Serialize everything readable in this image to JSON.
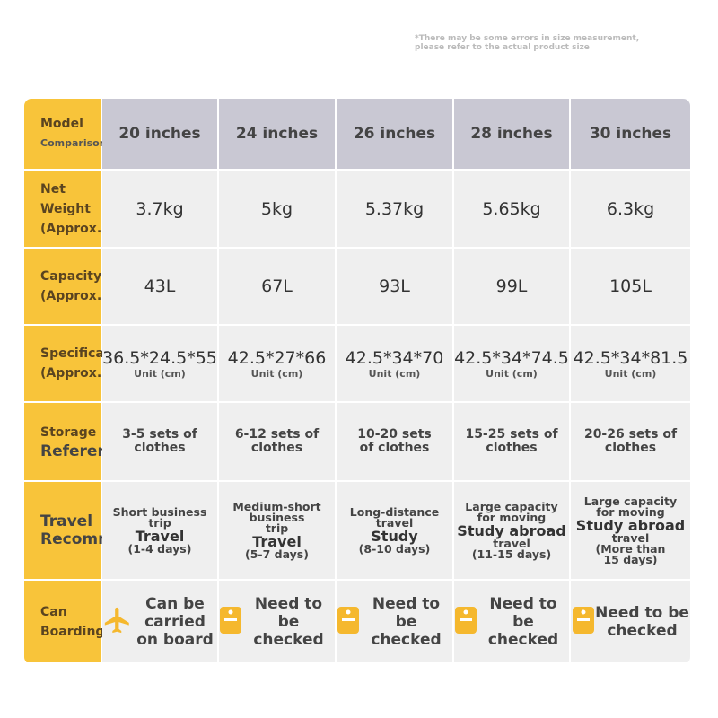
{
  "note": [
    "*There may be some errors in size measurement,",
    "please refer to the actual product size"
  ],
  "table": {
    "header": {
      "label": [
        "Model",
        "Comparison"
      ],
      "columns": [
        "20 inches",
        "24 inches",
        "26 inches",
        "28 inches",
        "30 inches"
      ]
    },
    "rows": [
      {
        "label": [
          "Net Weight",
          "(Approx.)"
        ],
        "cells": [
          [
            "3.7kg"
          ],
          [
            "5kg"
          ],
          [
            "5.37kg"
          ],
          [
            "5.65kg"
          ],
          [
            "6.3kg"
          ]
        ]
      },
      {
        "label": [
          "Capacity",
          "(Approx.)"
        ],
        "cells": [
          [
            "43L"
          ],
          [
            "67L"
          ],
          [
            "93L"
          ],
          [
            "99L"
          ],
          [
            "105L"
          ]
        ]
      },
      {
        "label": [
          "Specifications",
          "(Approx.)"
        ],
        "cells": [
          [
            "36.5*24.5*55",
            "Unit (cm)"
          ],
          [
            "42.5*27*66",
            "Unit (cm)"
          ],
          [
            "42.5*34*70",
            "Unit (cm)"
          ],
          [
            "42.5*34*74.5",
            "Unit (cm)"
          ],
          [
            "42.5*34*81.5",
            "Unit (cm)"
          ]
        ]
      },
      {
        "label": [
          "Storage",
          "Reference"
        ],
        "cells": [
          [
            "3-5 sets of",
            "clothes"
          ],
          [
            "6-12 sets of",
            "clothes"
          ],
          [
            "10-20 sets",
            "of clothes"
          ],
          [
            "15-25 sets of clothes"
          ],
          [
            "20-26 sets of clothes"
          ]
        ]
      },
      {
        "label": [
          "Travel",
          "Recommendation"
        ],
        "cells": [
          [
            "Short business",
            "trip",
            "Travel",
            "(1-4 days)"
          ],
          [
            "Medium-short business",
            "trip",
            "Travel",
            "(5-7 days)"
          ],
          [
            "Long-distance",
            "travel",
            "Study",
            "(8-10 days)"
          ],
          [
            "Large capacity",
            "for moving",
            "Study abroad",
            "travel",
            "(11-15 days)"
          ],
          [
            "Large capacity",
            "for moving",
            "Study abroad",
            "travel",
            "(More than",
            "15 days)"
          ]
        ]
      },
      {
        "label": [
          "Can",
          "Boarding"
        ],
        "cells": [
          [
            "Can be carried",
            "on board"
          ],
          [
            "Need to be",
            "checked"
          ],
          [
            "Need to be",
            "checked"
          ],
          [
            "Need to be",
            "checked"
          ],
          [
            "Need to be",
            "checked"
          ]
        ]
      }
    ]
  }
}
